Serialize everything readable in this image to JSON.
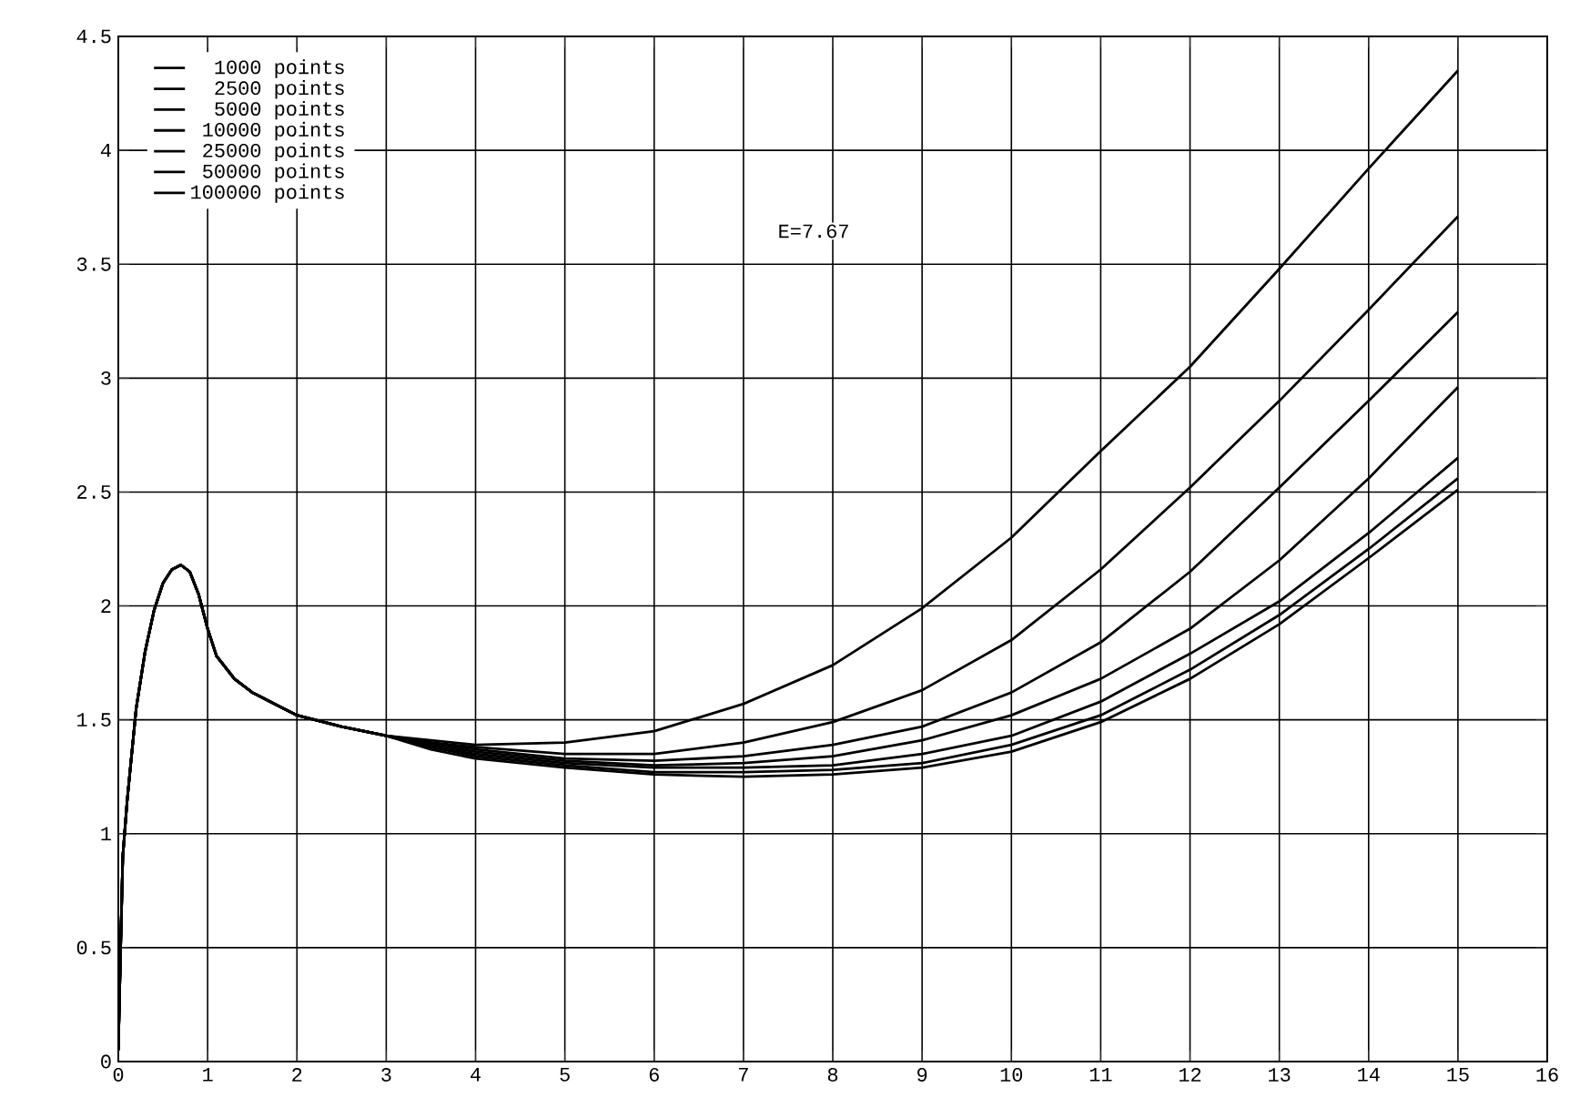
{
  "chart_data": {
    "type": "line",
    "x": [
      0,
      0.02,
      0.05,
      0.1,
      0.2,
      0.3,
      0.4,
      0.5,
      0.6,
      0.7,
      0.8,
      0.9,
      1.0,
      1.1,
      1.3,
      1.5,
      2,
      2.5,
      3,
      3.5,
      4,
      5,
      6,
      7,
      8,
      9,
      10,
      11,
      12,
      13,
      14,
      15
    ],
    "xlim": [
      0,
      16
    ],
    "ylim": [
      0,
      4.5
    ],
    "xticks": [
      0,
      1,
      2,
      3,
      4,
      5,
      6,
      7,
      8,
      9,
      10,
      11,
      12,
      13,
      14,
      15,
      16
    ],
    "yticks": [
      0,
      0.5,
      1,
      1.5,
      2,
      2.5,
      3,
      3.5,
      4,
      4.5
    ],
    "grid": true,
    "legend": "top left",
    "annotations": [
      "E=7.67"
    ],
    "series": [
      {
        "name": "1000 points",
        "color": "#000000",
        "values": [
          0.05,
          0.4,
          0.9,
          1.15,
          1.55,
          1.8,
          1.98,
          2.1,
          2.16,
          2.18,
          2.15,
          2.05,
          1.9,
          1.78,
          1.68,
          1.62,
          1.52,
          1.47,
          1.43,
          1.41,
          1.39,
          1.4,
          1.45,
          1.57,
          1.74,
          1.99,
          2.3,
          2.68,
          3.05,
          3.48,
          3.92,
          4.35
        ]
      },
      {
        "name": "2500 points",
        "color": "#000000",
        "values": [
          0.05,
          0.4,
          0.9,
          1.15,
          1.55,
          1.8,
          1.98,
          2.1,
          2.16,
          2.18,
          2.15,
          2.05,
          1.9,
          1.78,
          1.68,
          1.62,
          1.52,
          1.47,
          1.43,
          1.4,
          1.38,
          1.35,
          1.35,
          1.4,
          1.49,
          1.63,
          1.85,
          2.16,
          2.52,
          2.9,
          3.3,
          3.71
        ]
      },
      {
        "name": "5000 points",
        "color": "#000000",
        "values": [
          0.05,
          0.4,
          0.9,
          1.15,
          1.55,
          1.8,
          1.98,
          2.1,
          2.16,
          2.18,
          2.15,
          2.05,
          1.9,
          1.78,
          1.68,
          1.62,
          1.52,
          1.47,
          1.43,
          1.4,
          1.37,
          1.33,
          1.32,
          1.34,
          1.39,
          1.47,
          1.62,
          1.84,
          2.15,
          2.52,
          2.9,
          3.29
        ]
      },
      {
        "name": "10000 points",
        "color": "#000000",
        "values": [
          0.05,
          0.4,
          0.9,
          1.15,
          1.55,
          1.8,
          1.98,
          2.1,
          2.16,
          2.18,
          2.15,
          2.05,
          1.9,
          1.78,
          1.68,
          1.62,
          1.52,
          1.47,
          1.43,
          1.39,
          1.36,
          1.32,
          1.3,
          1.31,
          1.34,
          1.41,
          1.52,
          1.68,
          1.9,
          2.2,
          2.56,
          2.96
        ]
      },
      {
        "name": "25000 points",
        "color": "#000000",
        "values": [
          0.05,
          0.4,
          0.9,
          1.15,
          1.55,
          1.8,
          1.98,
          2.1,
          2.16,
          2.18,
          2.15,
          2.05,
          1.9,
          1.78,
          1.68,
          1.62,
          1.52,
          1.47,
          1.43,
          1.38,
          1.35,
          1.31,
          1.29,
          1.29,
          1.3,
          1.35,
          1.43,
          1.58,
          1.79,
          2.02,
          2.32,
          2.65
        ]
      },
      {
        "name": "50000 points",
        "color": "#000000",
        "values": [
          0.05,
          0.4,
          0.9,
          1.15,
          1.55,
          1.8,
          1.98,
          2.1,
          2.16,
          2.18,
          2.15,
          2.05,
          1.9,
          1.78,
          1.68,
          1.62,
          1.52,
          1.47,
          1.43,
          1.38,
          1.34,
          1.3,
          1.27,
          1.27,
          1.28,
          1.31,
          1.39,
          1.52,
          1.72,
          1.96,
          2.25,
          2.56
        ]
      },
      {
        "name": "100000 points",
        "color": "#000000",
        "values": [
          0.05,
          0.4,
          0.9,
          1.15,
          1.55,
          1.8,
          1.98,
          2.1,
          2.16,
          2.18,
          2.15,
          2.05,
          1.9,
          1.78,
          1.68,
          1.62,
          1.52,
          1.47,
          1.43,
          1.37,
          1.33,
          1.29,
          1.26,
          1.25,
          1.26,
          1.29,
          1.36,
          1.49,
          1.68,
          1.92,
          2.21,
          2.51
        ]
      }
    ]
  }
}
